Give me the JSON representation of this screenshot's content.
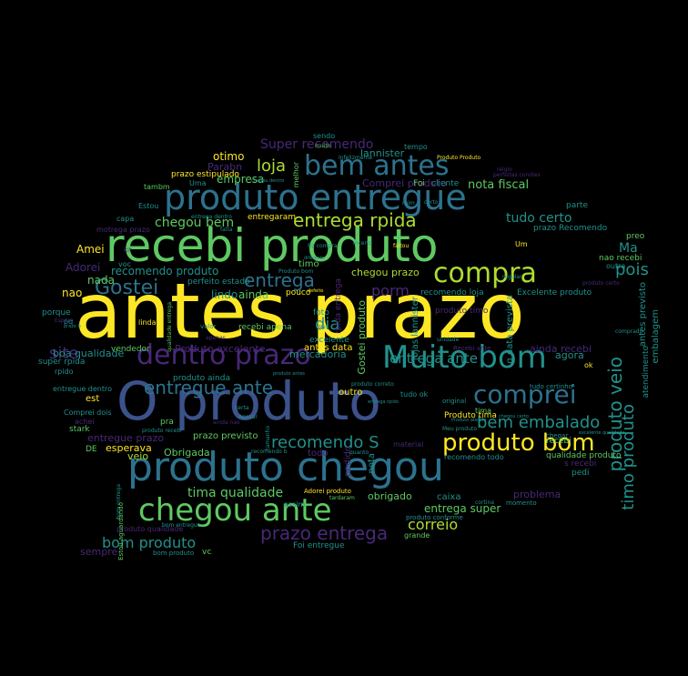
{
  "palette": {
    "background": "#000000",
    "yellow": "#fde725",
    "green": "#5ec962",
    "teal": "#21918c",
    "blue": "#3b528b",
    "purple": "#440154",
    "indigo": "#482878",
    "lightgreen": "#addc30",
    "cyan": "#2c728e"
  },
  "words": [
    {
      "text": "antes prazo",
      "color": "yellow"
    },
    {
      "text": "O produto",
      "color": "blue"
    },
    {
      "text": "recebi produto",
      "color": "green"
    },
    {
      "text": "produto chegou",
      "color": "cyan"
    },
    {
      "text": "produto entregue",
      "color": "cyan"
    },
    {
      "text": "Muito bom",
      "color": "teal"
    },
    {
      "text": "chegou ante",
      "color": "green"
    },
    {
      "text": "dentro prazo",
      "color": "indigo"
    },
    {
      "text": "bem antes",
      "color": "cyan"
    },
    {
      "text": "compra",
      "color": "lightgreen"
    },
    {
      "text": "comprei",
      "color": "cyan"
    },
    {
      "text": "produto bom",
      "color": "yellow"
    },
    {
      "text": "entrega rpida",
      "color": "lightgreen"
    },
    {
      "text": "Gostei",
      "color": "cyan"
    },
    {
      "text": "entrega",
      "color": "cyan"
    },
    {
      "text": "entregue ante",
      "color": "cyan"
    },
    {
      "text": "prazo entrega",
      "color": "indigo"
    },
    {
      "text": "recomendo S",
      "color": "teal"
    },
    {
      "text": "bem embalado",
      "color": "teal"
    },
    {
      "text": "timo produto",
      "color": "teal"
    },
    {
      "text": "produto veio",
      "color": "teal"
    },
    {
      "text": "tima qualidade",
      "color": "green"
    },
    {
      "text": "bom produto",
      "color": "teal"
    },
    {
      "text": "correio",
      "color": "lightgreen"
    },
    {
      "text": "entrega super",
      "color": "green"
    },
    {
      "text": "loja",
      "color": "lightgreen"
    },
    {
      "text": "Super recomendo",
      "color": "indigo"
    },
    {
      "text": "tudo certo",
      "color": "teal"
    },
    {
      "text": "chegou bem",
      "color": "green"
    },
    {
      "text": "site",
      "color": "indigo"
    },
    {
      "text": "dia",
      "color": "teal"
    },
    {
      "text": "pois",
      "color": "teal"
    },
    {
      "text": "porm",
      "color": "indigo"
    },
    {
      "text": "entrega ante",
      "color": "teal"
    },
    {
      "text": "nota fiscal",
      "color": "green"
    },
    {
      "text": "Comprei produto",
      "color": "indigo"
    },
    {
      "text": "lannister",
      "color": "teal"
    },
    {
      "text": "otimo",
      "color": "yellow"
    },
    {
      "text": "Parabn",
      "color": "indigo"
    },
    {
      "text": "empresa",
      "color": "green"
    },
    {
      "text": "recomendo produto",
      "color": "teal"
    },
    {
      "text": "ainda",
      "color": "green"
    },
    {
      "text": "lindo",
      "color": "teal"
    },
    {
      "text": "Adorei",
      "color": "indigo"
    },
    {
      "text": "Amei",
      "color": "yellow"
    },
    {
      "text": "nada",
      "color": "green"
    },
    {
      "text": "nao",
      "color": "yellow"
    },
    {
      "text": "Ma",
      "color": "teal"
    },
    {
      "text": "chegou prazo",
      "color": "lightgreen"
    },
    {
      "text": "Produto excelente",
      "color": "indigo"
    },
    {
      "text": "boa qualidade",
      "color": "teal"
    },
    {
      "text": "antes data",
      "color": "yellow"
    },
    {
      "text": "mercadoria",
      "color": "teal"
    },
    {
      "text": "obrigado",
      "color": "green"
    },
    {
      "text": "problema",
      "color": "indigo"
    },
    {
      "text": "caixa",
      "color": "teal"
    },
    {
      "text": "Obrigada",
      "color": "green"
    },
    {
      "text": "esperava",
      "color": "yellow"
    },
    {
      "text": "pedido",
      "color": "indigo"
    },
    {
      "text": "agora",
      "color": "teal"
    },
    {
      "text": "sempre",
      "color": "indigo"
    },
    {
      "text": "entregue prazo",
      "color": "indigo"
    },
    {
      "text": "veio",
      "color": "lightgreen"
    },
    {
      "text": "todo",
      "color": "indigo"
    },
    {
      "text": "nota",
      "color": "teal"
    },
    {
      "text": "qualidade produto",
      "color": "green"
    },
    {
      "text": "recomendo loja",
      "color": "teal"
    },
    {
      "text": "Excelente produto",
      "color": "teal"
    },
    {
      "text": "produto timo",
      "color": "indigo"
    },
    {
      "text": "Gostei produto",
      "color": "green"
    },
    {
      "text": "lojas lannister",
      "color": "teal"
    },
    {
      "text": "q data prevista",
      "color": "teal"
    },
    {
      "text": "antes previsto",
      "color": "teal"
    },
    {
      "text": "embalagem",
      "color": "teal"
    },
    {
      "text": "atendimento",
      "color": "teal"
    },
    {
      "text": "ainda recebi",
      "color": "indigo"
    },
    {
      "text": "prazo previsto",
      "color": "green"
    },
    {
      "text": "produto ainda",
      "color": "teal"
    },
    {
      "text": "outro",
      "color": "yellow"
    },
    {
      "text": "entregaram",
      "color": "yellow"
    },
    {
      "text": "recebi apena",
      "color": "green"
    },
    {
      "text": "vendedor",
      "color": "green"
    },
    {
      "text": "super rpida",
      "color": "teal"
    },
    {
      "text": "porque",
      "color": "teal"
    },
    {
      "text": "perfeito estado",
      "color": "teal"
    },
    {
      "text": "excelente",
      "color": "teal"
    },
    {
      "text": "foto",
      "color": "teal"
    },
    {
      "text": "pouco",
      "color": "yellow"
    },
    {
      "text": "rpida entrega",
      "color": "indigo"
    },
    {
      "text": "timo",
      "color": "green"
    },
    {
      "text": "prazo Recomendo",
      "color": "teal"
    },
    {
      "text": "preo",
      "color": "green"
    },
    {
      "text": "nao recebi",
      "color": "green"
    },
    {
      "text": "tima",
      "color": "green"
    },
    {
      "text": "Produto tima",
      "color": "yellow"
    },
    {
      "text": "recebi",
      "color": "green"
    },
    {
      "text": "s recebi",
      "color": "indigo"
    },
    {
      "text": "pedi",
      "color": "teal"
    },
    {
      "text": "Foi entregue",
      "color": "teal"
    },
    {
      "text": "grande",
      "color": "green"
    },
    {
      "text": "Adorei produto",
      "color": "yellow"
    },
    {
      "text": "bom produto",
      "color": "teal"
    },
    {
      "text": "vc",
      "color": "green"
    },
    {
      "text": "stark",
      "color": "green"
    },
    {
      "text": "DE",
      "color": "green"
    },
    {
      "text": "pra",
      "color": "green"
    },
    {
      "text": "est",
      "color": "yellow"
    },
    {
      "text": "prazo estipulado",
      "color": "yellow"
    },
    {
      "text": "tambm",
      "color": "green"
    },
    {
      "text": "Estou",
      "color": "teal"
    },
    {
      "text": "capa",
      "color": "teal"
    },
    {
      "text": "melhor",
      "color": "green"
    },
    {
      "text": "tempo",
      "color": "teal"
    },
    {
      "text": "sendo",
      "color": "teal"
    },
    {
      "text": "Foi",
      "color": "green"
    },
    {
      "text": "cliente",
      "color": "teal"
    },
    {
      "text": "parte",
      "color": "teal"
    },
    {
      "text": "Um",
      "color": "yellow"
    },
    {
      "text": "ok",
      "color": "yellow"
    },
    {
      "text": "outra",
      "color": "teal"
    },
    {
      "text": "momento",
      "color": "teal"
    },
    {
      "text": "material",
      "color": "indigo"
    },
    {
      "text": "assim",
      "color": "teal"
    },
    {
      "text": "recomendo todo",
      "color": "teal"
    },
    {
      "text": "quanto",
      "color": "teal"
    },
    {
      "text": "rpido",
      "color": "teal"
    },
    {
      "text": "entregue dentro",
      "color": "teal"
    },
    {
      "text": "Comprei dois",
      "color": "teal"
    },
    {
      "text": "achei",
      "color": "indigo"
    },
    {
      "text": "produto qualidade",
      "color": "indigo"
    },
    {
      "text": "pq",
      "color": "teal"
    },
    {
      "text": "voc",
      "color": "teal"
    },
    {
      "text": "tudo ok",
      "color": "teal"
    },
    {
      "text": "original",
      "color": "teal"
    },
    {
      "text": "produto conforme",
      "color": "teal"
    },
    {
      "text": "tudo certinho",
      "color": "teal"
    },
    {
      "text": "unidade",
      "color": "teal"
    },
    {
      "text": "Recebi ante",
      "color": "indigo"
    },
    {
      "text": "chegar",
      "color": "teal"
    },
    {
      "text": "comprado",
      "color": "teal"
    },
    {
      "text": "Produto Produto",
      "color": "yellow"
    },
    {
      "text": "Infelizmente",
      "color": "teal"
    },
    {
      "text": "relgio",
      "color": "indigo"
    },
    {
      "text": "perfeitas condies",
      "color": "indigo"
    },
    {
      "text": "bom entrega",
      "color": "teal"
    },
    {
      "text": "Estou aguardando",
      "color": "green"
    },
    {
      "text": "produto recebi",
      "color": "teal"
    },
    {
      "text": "faltou",
      "color": "yellow"
    },
    {
      "text": "Produto bom",
      "color": "teal"
    },
    {
      "text": "diferente",
      "color": "teal"
    },
    {
      "text": "kit",
      "color": "indigo"
    },
    {
      "text": "falta",
      "color": "teal"
    },
    {
      "text": "Fiz compra",
      "color": "teal"
    },
    {
      "text": "motrega prazo",
      "color": "indigo"
    },
    {
      "text": "entrega dentro",
      "color": "teal"
    },
    {
      "text": "qualidade entrega",
      "color": "green"
    },
    {
      "text": "linda",
      "color": "yellow"
    },
    {
      "text": "valor",
      "color": "teal"
    },
    {
      "text": "Apesar",
      "color": "teal"
    },
    {
      "text": "tardaram",
      "color": "green"
    },
    {
      "text": "recomendo b",
      "color": "teal"
    },
    {
      "text": "produto antes",
      "color": "teal"
    },
    {
      "text": "Meu produto",
      "color": "teal"
    },
    {
      "text": "incerto",
      "color": "teal"
    },
    {
      "text": "certa",
      "color": "teal"
    },
    {
      "text": "bom entregue",
      "color": "teal"
    },
    {
      "text": "tamanho",
      "color": "teal"
    },
    {
      "text": "certo",
      "color": "teal"
    },
    {
      "text": "ruim",
      "color": "teal"
    },
    {
      "text": "prazo b",
      "color": "teal"
    },
    {
      "text": "Mai",
      "color": "teal"
    },
    {
      "text": "Espero",
      "color": "indigo"
    },
    {
      "text": "produto certo",
      "color": "indigo"
    },
    {
      "text": "apenas",
      "color": "indigo"
    },
    {
      "text": "ainda nao",
      "color": "indigo"
    },
    {
      "text": "excelente qualidade",
      "color": "teal"
    },
    {
      "text": "chegou dentro",
      "color": "teal"
    },
    {
      "text": "entrega rpido",
      "color": "teal"
    },
    {
      "text": "chegou certo",
      "color": "teal"
    },
    {
      "text": "produto correto",
      "color": "teal"
    },
    {
      "text": "Produto atende",
      "color": "teal"
    },
    {
      "text": "defeito",
      "color": "yellow"
    },
    {
      "text": "Uma",
      "color": "teal"
    },
    {
      "text": "muito",
      "color": "green"
    },
    {
      "text": "regular",
      "color": "teal"
    },
    {
      "text": "cortina",
      "color": "teal"
    }
  ]
}
